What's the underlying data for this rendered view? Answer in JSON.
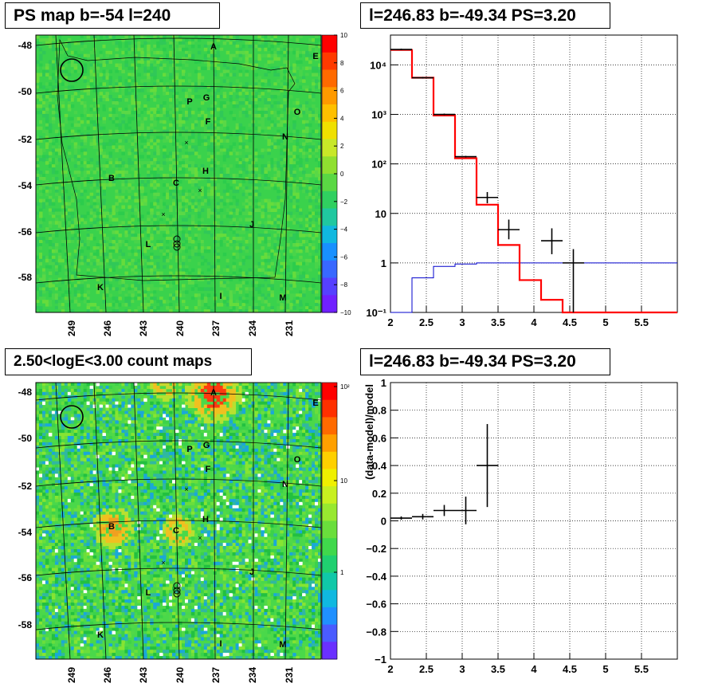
{
  "panels": {
    "top_left_title": "PS map b=-54 l=240",
    "top_right_title": "l=246.83 b=-49.34 PS=3.20",
    "bottom_left_title": "2.50<logE<3.00 count maps",
    "bottom_right_title": "l=246.83 b=-49.34 PS=3.20"
  },
  "colors": {
    "map_green": "#3cd24a",
    "map_green_light": "#7ae13a",
    "data_points": "#000000",
    "model_red": "#ff0000",
    "background_blue": "#0000cc"
  },
  "chart_data": [
    {
      "type": "heatmap",
      "title": "PS map b=-54 l=240",
      "xlabel": "",
      "ylabel": "",
      "x_ticks": [
        "249",
        "246",
        "243",
        "240",
        "237",
        "234",
        "231"
      ],
      "y_ticks": [
        "-48",
        "-50",
        "-52",
        "-54",
        "-56",
        "-58"
      ],
      "colorbar": {
        "min": -10,
        "max": 10,
        "ticks": [
          "10",
          "8",
          "6",
          "4",
          "2",
          "0",
          "−2",
          "−4",
          "−6",
          "−8",
          "−10"
        ]
      },
      "source_labels": [
        "A",
        "E",
        "P",
        "G",
        "O",
        "F",
        "N",
        "B",
        "C",
        "H",
        "J",
        "L",
        "K",
        "I",
        "M"
      ]
    },
    {
      "type": "bar",
      "title": "l=246.83 b=-49.34 PS=3.20",
      "log_y": true,
      "xlim": [
        2,
        6
      ],
      "ylim": [
        0.1,
        40000
      ],
      "x_ticks": [
        "2",
        "2.5",
        "3",
        "3.5",
        "4",
        "4.5",
        "5",
        "5.5"
      ],
      "y_ticks": [
        "10⁻¹",
        "1",
        "10",
        "10²",
        "10³",
        "10⁴"
      ],
      "data_points": [
        {
          "x": 2.15,
          "xerr": 0.15,
          "y": 20500
        },
        {
          "x": 2.45,
          "xerr": 0.15,
          "y": 5500
        },
        {
          "x": 2.75,
          "xerr": 0.15,
          "y": 1000
        },
        {
          "x": 3.05,
          "xerr": 0.15,
          "y": 140
        },
        {
          "x": 3.35,
          "xerr": 0.15,
          "y": 21,
          "ylo": 16,
          "yhi": 27
        },
        {
          "x": 3.65,
          "xerr": 0.15,
          "y": 4.7,
          "ylo": 3.0,
          "yhi": 7.5
        },
        {
          "x": 4.25,
          "xerr": 0.15,
          "y": 2.8,
          "ylo": 1.5,
          "yhi": 5.0
        },
        {
          "x": 4.55,
          "xerr": 0.15,
          "y": 1.0,
          "ylo": 0.1,
          "yhi": 1.9
        }
      ],
      "series": [
        {
          "edges": [
            2.0,
            2.3,
            2.6,
            2.9,
            3.2,
            3.5,
            3.8,
            4.1,
            4.4,
            6.0
          ],
          "values": [
            20000,
            5500,
            950,
            130,
            15,
            2.3,
            0.45,
            0.18,
            0.1
          ]
        },
        {
          "edges": [
            2.0,
            2.3,
            2.6,
            2.9,
            3.2,
            6.0
          ],
          "values": [
            0.1,
            0.5,
            0.85,
            0.95,
            1.0
          ]
        }
      ]
    },
    {
      "type": "heatmap",
      "title": "2.50<logE<3.00 count maps",
      "xlabel": "",
      "ylabel": "",
      "x_ticks": [
        "249",
        "246",
        "243",
        "240",
        "237",
        "234",
        "231"
      ],
      "y_ticks": [
        "-48",
        "-50",
        "-52",
        "-54",
        "-56",
        "-58"
      ],
      "colorbar": {
        "ticks": [
          "10²",
          "10",
          "1"
        ]
      },
      "source_labels": [
        "A",
        "E",
        "P",
        "G",
        "O",
        "F",
        "N",
        "B",
        "C",
        "H",
        "J",
        "L",
        "K",
        "I",
        "M"
      ]
    },
    {
      "type": "scatter",
      "title": "l=246.83 b=-49.34 PS=3.20",
      "xlabel": "",
      "ylabel": "(data-model)/model",
      "xlim": [
        2,
        6
      ],
      "ylim": [
        -1,
        1
      ],
      "x_ticks": [
        "2",
        "2.5",
        "3",
        "3.5",
        "4",
        "4.5",
        "5",
        "5.5"
      ],
      "y_ticks": [
        "1",
        "0.8",
        "0.6",
        "0.4",
        "0.2",
        "0",
        "−0.2",
        "−0.4",
        "−0.6",
        "−0.8",
        "−1"
      ],
      "points": [
        {
          "x": 2.15,
          "xerr": 0.15,
          "y": 0.02,
          "yerr": 0.012
        },
        {
          "x": 2.45,
          "xerr": 0.15,
          "y": 0.03,
          "yerr": 0.02
        },
        {
          "x": 2.75,
          "xerr": 0.15,
          "y": 0.075,
          "yerr": 0.04
        },
        {
          "x": 3.05,
          "xerr": 0.15,
          "y": 0.075,
          "yerr": 0.1
        },
        {
          "x": 3.35,
          "xerr": 0.15,
          "y": 0.4,
          "yerr": 0.3
        }
      ]
    }
  ]
}
